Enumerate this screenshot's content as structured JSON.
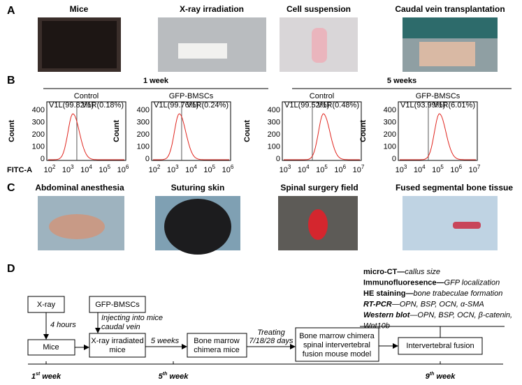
{
  "panel_a": {
    "label": "A",
    "images": [
      "Mice",
      "X-ray irradiation",
      "Cell suspension",
      "Caudal vein transplantation"
    ]
  },
  "panel_b": {
    "label": "B",
    "y_label": "Count",
    "x_label": "FITC-A",
    "y_ticks": [
      0,
      100,
      200,
      300,
      400
    ],
    "groups": [
      {
        "title": "1 week",
        "x_ticks": [
          {
            "base": "10",
            "exp": "2"
          },
          {
            "base": "10",
            "exp": "3"
          },
          {
            "base": "10",
            "exp": "4"
          },
          {
            "base": "10",
            "exp": "5"
          },
          {
            "base": "10",
            "exp": "6"
          }
        ],
        "plots": [
          {
            "title": "Control",
            "left_gate": "V1L(99.82%)",
            "right_gate": "V1R(0.18%)"
          },
          {
            "title": "GFP-BMSCs",
            "left_gate": "V1L(99.76%)",
            "right_gate": "V1R(0.24%)"
          }
        ]
      },
      {
        "title": "5 weeks",
        "x_ticks": [
          {
            "base": "10",
            "exp": "3"
          },
          {
            "base": "10",
            "exp": "4"
          },
          {
            "base": "10",
            "exp": "5"
          },
          {
            "base": "10",
            "exp": "6"
          },
          {
            "base": "10",
            "exp": "7"
          }
        ],
        "plots": [
          {
            "title": "Control",
            "left_gate": "V1L(99.52%)",
            "right_gate": "V1R(0.48%)"
          },
          {
            "title": "GFP-BMSCs",
            "left_gate": "V1L(93.99%)",
            "right_gate": "V1R(6.01%)"
          }
        ]
      }
    ]
  },
  "panel_c": {
    "label": "C",
    "images": [
      "Abdominal anesthesia",
      "Suturing skin",
      "Spinal surgery field",
      "Fused segmental bone tissue"
    ]
  },
  "panel_d": {
    "label": "D",
    "nodes": [
      "X-ray",
      "GFP-BMSCs",
      "Mice",
      "X-ray irradiated",
      "mice",
      "Bone marrow",
      "chimera mice",
      "Bone marrow chimera",
      "spinal intervertebral",
      "fusion mouse model",
      "Intervertebral fusion"
    ],
    "edge_labels": [
      "4 hours",
      "Injecting into mice",
      "caudal vein",
      "5 weeks",
      "Treating",
      "7/18/28 days"
    ],
    "outcomes": [
      {
        "lead": "micro-CT—",
        "detail": "callus size"
      },
      {
        "lead": "Immunofluoresence—",
        "detail": "GFP localization"
      },
      {
        "lead": "HE staining—",
        "detail": "bone trabeculae formation"
      },
      {
        "lead": "RT-PCR",
        "lead_italic": true,
        "detail": "—OPN, BSP, OCN, α-SMA"
      },
      {
        "lead": "Western blot",
        "lead_italic": true,
        "detail": "—OPN, BSP, OCN, β-catenin,"
      },
      {
        "detail": "Wnt10b"
      }
    ],
    "timeline": [
      {
        "num": "1",
        "sup": "st",
        "unit": " week"
      },
      {
        "num": "5",
        "sup": "th",
        "unit": " week"
      },
      {
        "num": "9",
        "sup": "th",
        "unit": " week"
      }
    ]
  }
}
